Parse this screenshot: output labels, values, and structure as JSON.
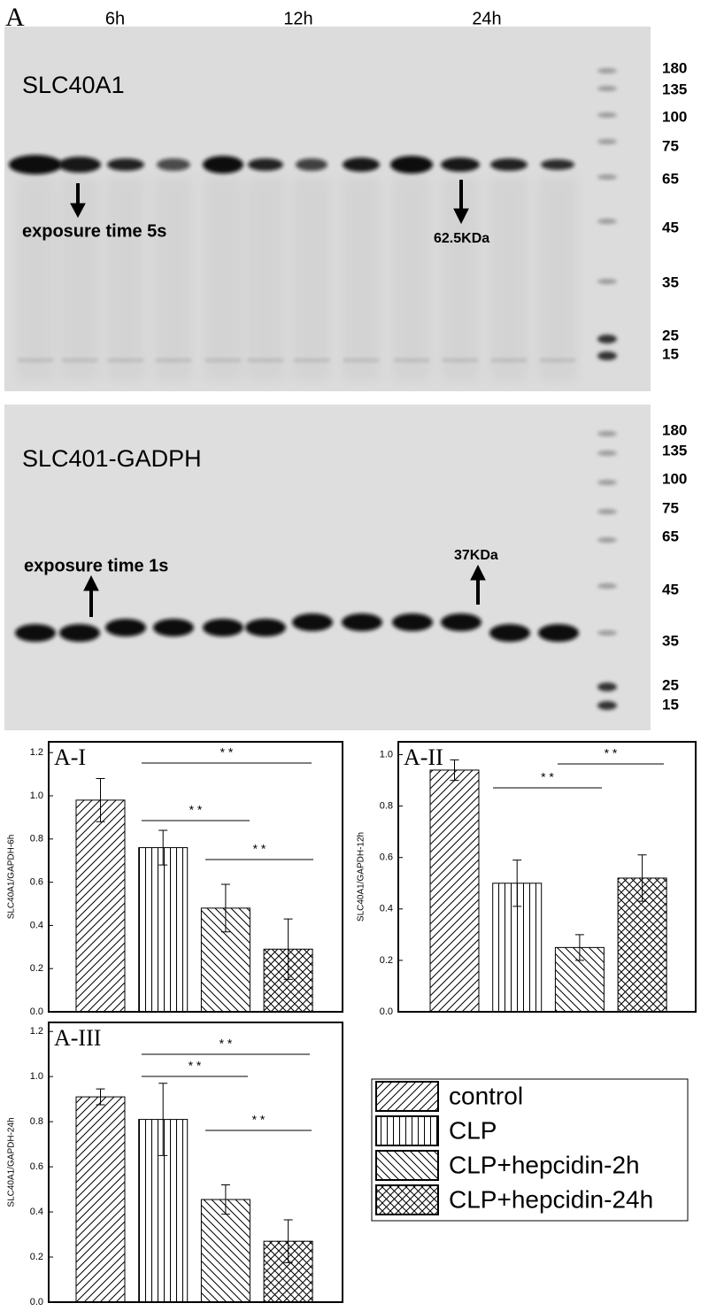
{
  "figure": {
    "panel_label": "A",
    "time_groups": [
      "6h",
      "12h",
      "24h"
    ],
    "blots": [
      {
        "title": "SLC40A1",
        "exposure": "exposure time 5s",
        "size": "62.5KDa",
        "markers": [
          180,
          135,
          100,
          75,
          65,
          45,
          35,
          25,
          15
        ]
      },
      {
        "title": "SLC401-GADPH",
        "exposure": "exposure time 1s",
        "size": "37KDa",
        "markers": [
          180,
          135,
          100,
          75,
          65,
          45,
          35,
          25,
          15
        ]
      }
    ]
  },
  "chart_data": [
    {
      "type": "bar",
      "title": "A-I",
      "ylabel": "SLC40A1/GAPDH-6h",
      "categories": [
        null,
        null,
        null,
        null
      ],
      "values": [
        0.98,
        0.76,
        0.48,
        0.29
      ],
      "errors": [
        0.1,
        0.08,
        0.11,
        0.14
      ],
      "ylim": [
        0,
        1.25
      ],
      "yticks": [
        {
          "value": 0,
          "label": "0.0"
        },
        0.2,
        0.4,
        0.6,
        0.8,
        {
          "value": 1,
          "label": "1.0"
        },
        1.2
      ],
      "annotations": [
        "* *",
        "* *",
        "* *"
      ]
    },
    {
      "type": "bar",
      "title": "A-II",
      "ylabel": "SLC40A1/GAPDH-12h",
      "categories": [
        null,
        null,
        null,
        null
      ],
      "values": [
        0.94,
        0.5,
        0.25,
        0.52
      ],
      "errors": [
        0.04,
        0.09,
        0.05,
        0.09
      ],
      "ylim": [
        0,
        1.05
      ],
      "yticks": [
        {
          "value": 0,
          "label": "0.0"
        },
        0.2,
        0.4,
        0.6,
        0.8,
        {
          "value": 1,
          "label": "1.0"
        }
      ],
      "annotations": [
        "* *",
        "* *"
      ]
    },
    {
      "type": "bar",
      "title": "A-III",
      "ylabel": "SLC40A1/GAPDH-24h",
      "categories": [
        null,
        null,
        null,
        null
      ],
      "values": [
        0.91,
        0.81,
        0.455,
        0.27
      ],
      "errors": [
        0.035,
        0.16,
        0.065,
        0.095
      ],
      "ylim": [
        0,
        1.24
      ],
      "yticks": [
        {
          "value": 0,
          "label": "0.0"
        },
        0.2,
        0.4,
        0.6,
        0.8,
        {
          "value": 1,
          "label": "1.0"
        },
        1.2
      ],
      "annotations": [
        "* *",
        "* *",
        "* *"
      ]
    }
  ],
  "legend": [
    {
      "label": "control",
      "hatch": "/"
    },
    {
      "label": "CLP",
      "hatch": "|"
    },
    {
      "label": "CLP+hepcidin-2h",
      "hatch": "\\"
    },
    {
      "label": "CLP+hepcidin-24h",
      "hatch": "x"
    }
  ]
}
